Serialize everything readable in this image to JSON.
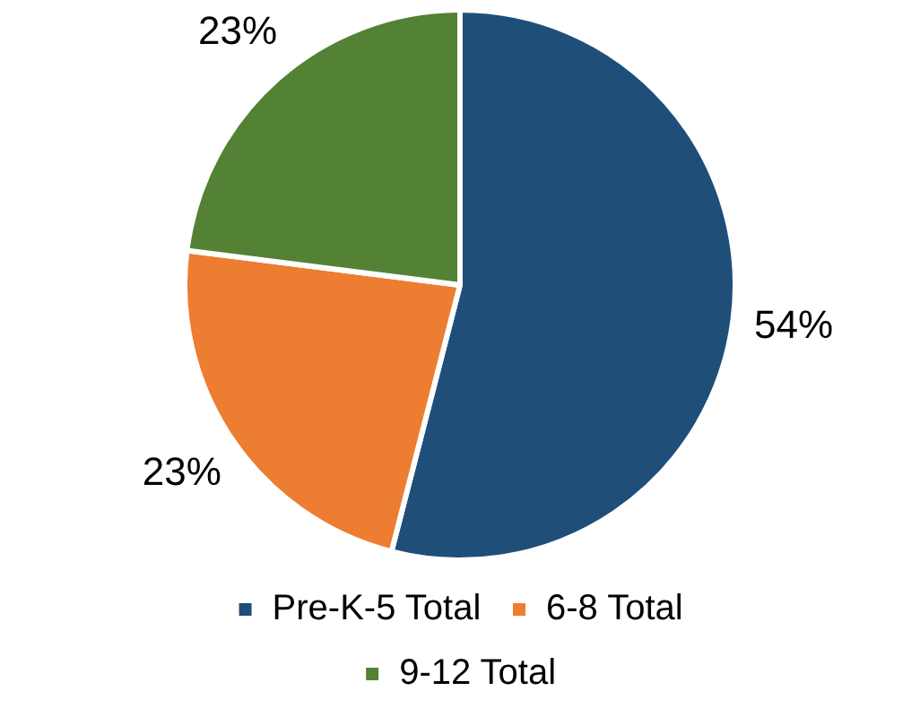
{
  "chart_data": {
    "type": "pie",
    "categories": [
      "Pre-K-5 Total",
      "6-8 Total",
      "9-12 Total"
    ],
    "values": [
      54,
      23,
      23
    ],
    "colors": [
      "#1f4e79",
      "#ed7d31",
      "#548235"
    ],
    "value_labels": [
      "54%",
      "23%",
      "23%"
    ],
    "legend": "bottom"
  }
}
